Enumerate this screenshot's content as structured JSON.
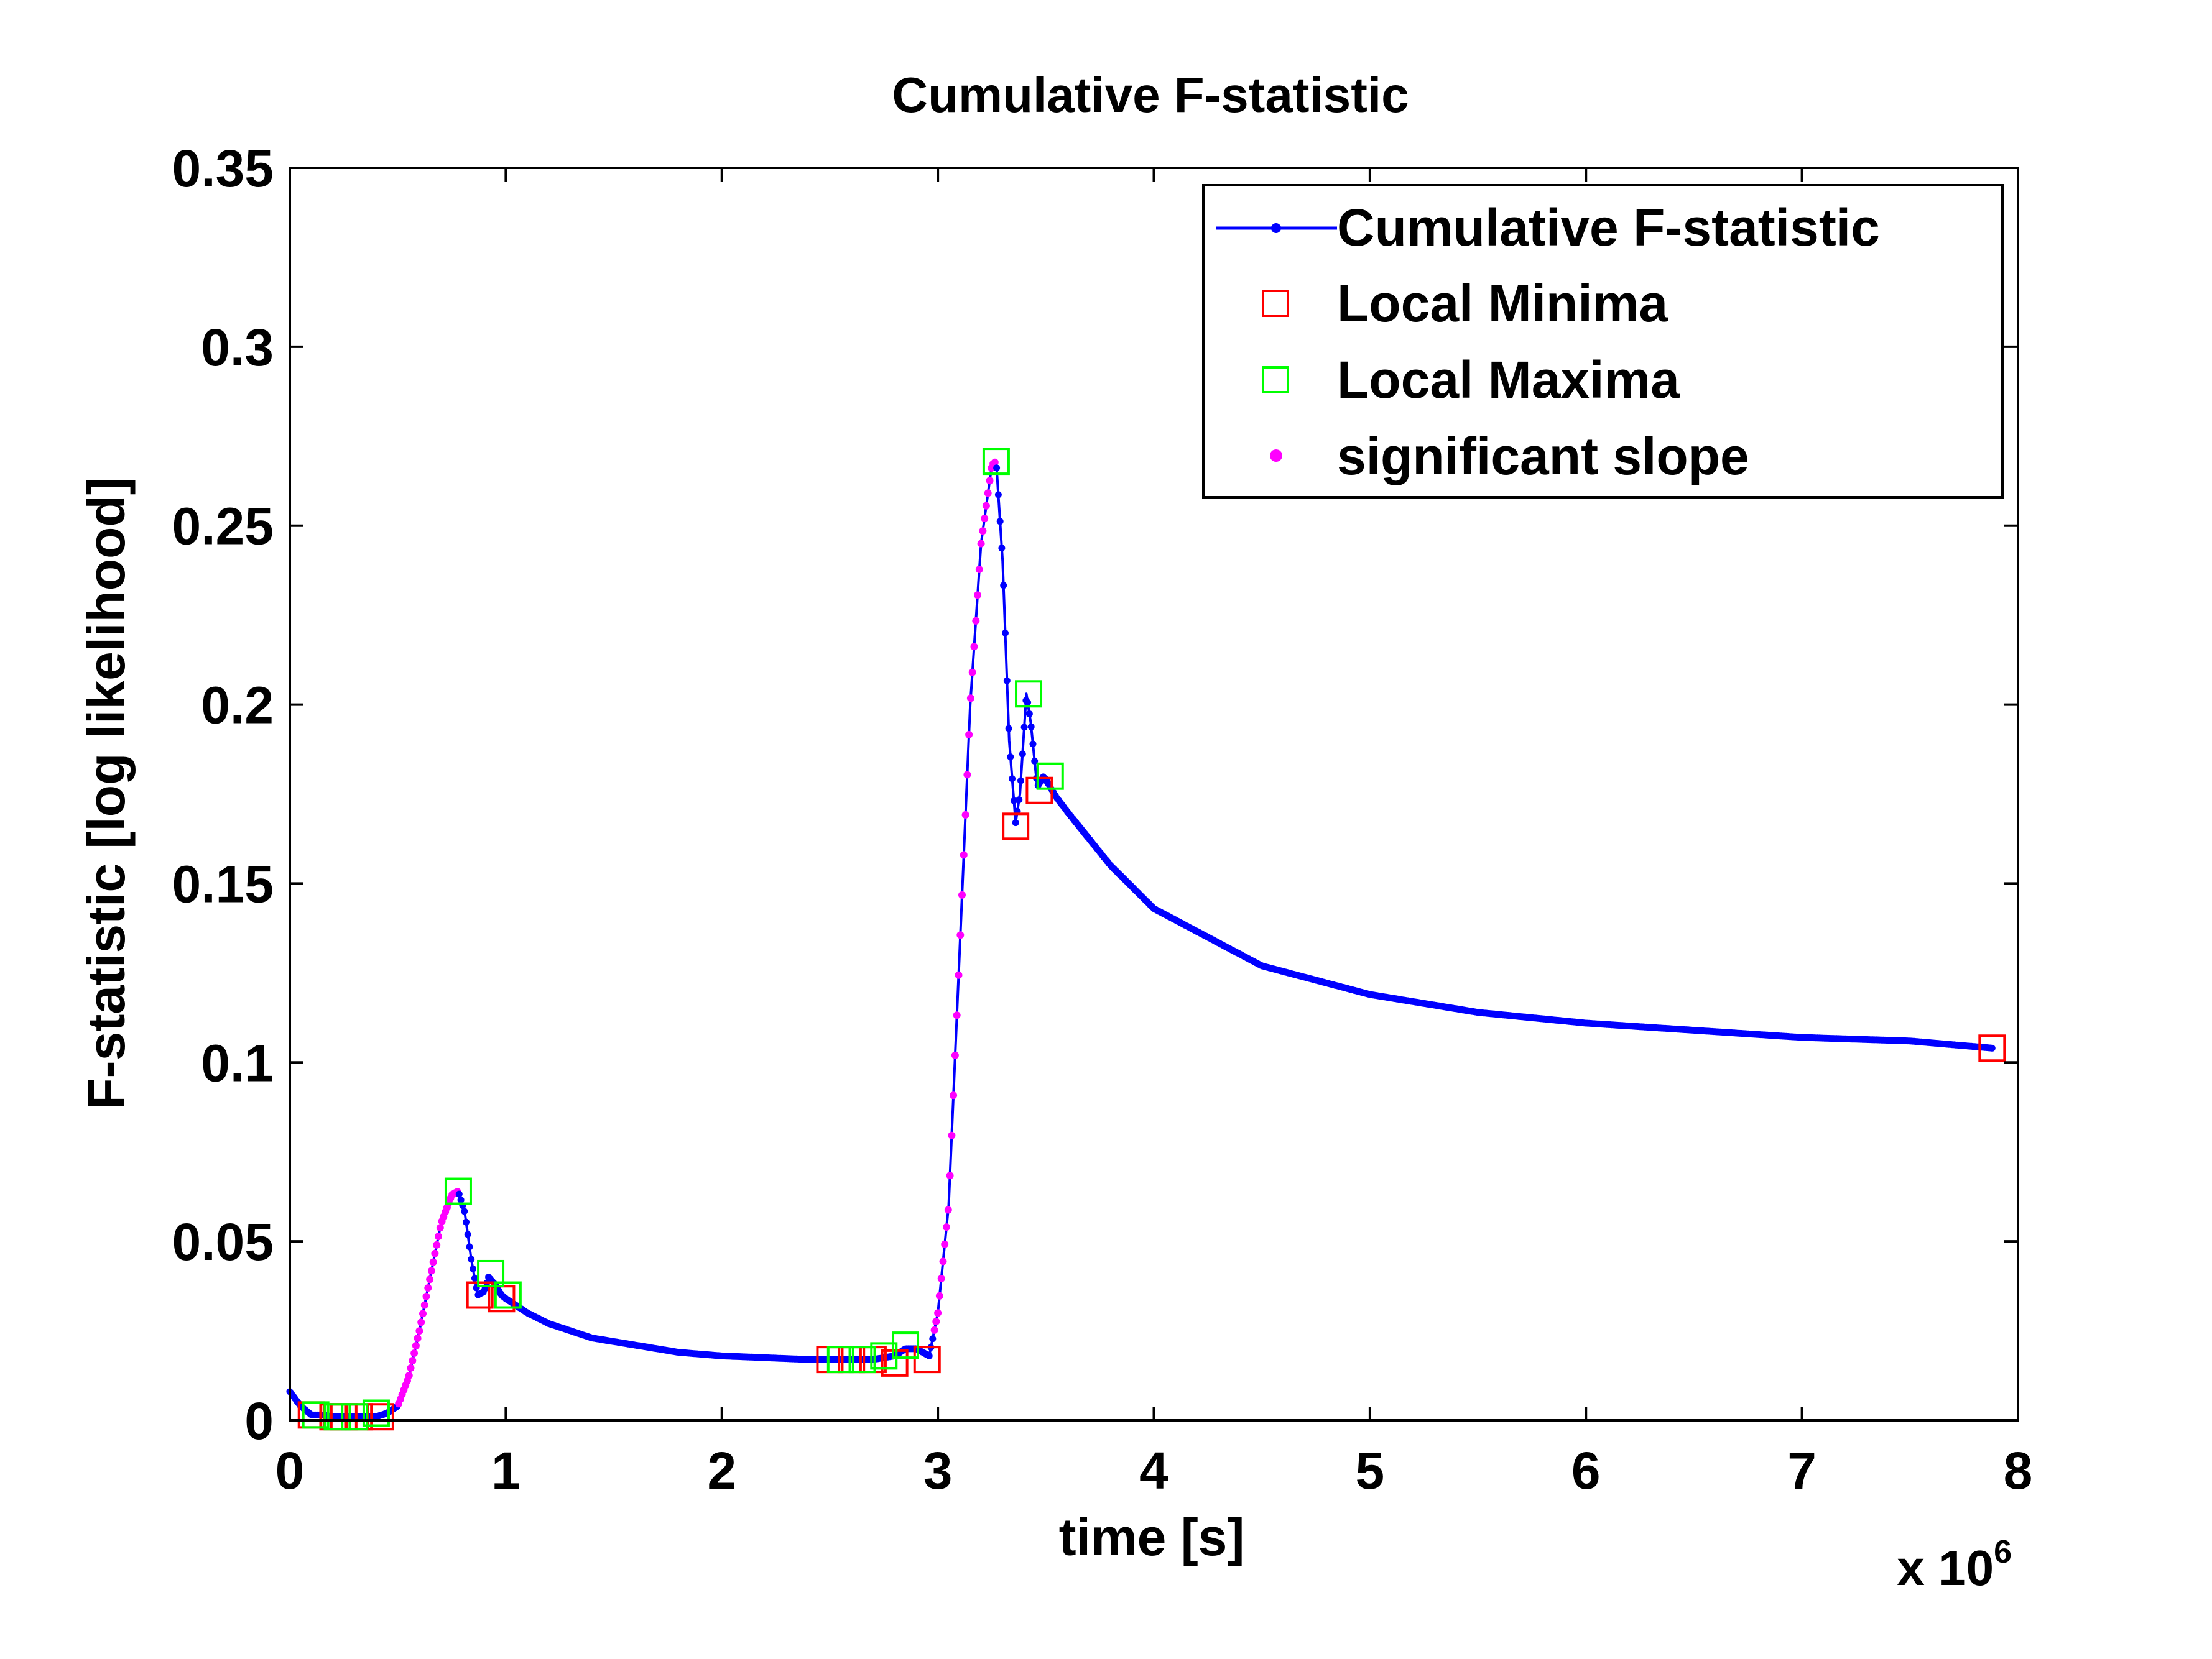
{
  "chart_data": {
    "type": "line",
    "title": "Cumulative F-statistic",
    "xlabel": "time [s]",
    "ylabel": "F-statistic [log likelihood]",
    "x_multiplier_label": "x 10",
    "x_multiplier_exponent": "6",
    "x_scale": 1000000,
    "xlim": [
      0,
      8
    ],
    "ylim": [
      0,
      0.35
    ],
    "grid": false,
    "legend_position": "top-right",
    "x_ticks": [
      0,
      1,
      2,
      3,
      4,
      5,
      6,
      7,
      8
    ],
    "x_tick_labels": [
      "0",
      "1",
      "2",
      "3",
      "4",
      "5",
      "6",
      "7",
      "8"
    ],
    "y_ticks": [
      0,
      0.05,
      0.1,
      0.15,
      0.2,
      0.25,
      0.3,
      0.35
    ],
    "y_tick_labels": [
      "0",
      "0.05",
      "0.1",
      "0.15",
      "0.2",
      "0.25",
      "0.3",
      "0.35"
    ],
    "legend": [
      {
        "label": "Cumulative F-statistic",
        "marker": "line-dot",
        "color": "#0000ff"
      },
      {
        "label": "Local Minima",
        "marker": "square",
        "color": "#ff0000"
      },
      {
        "label": "Local Maxima",
        "marker": "square",
        "color": "#00ff00"
      },
      {
        "label": "significant slope",
        "marker": "dot",
        "color": "#ff00ff"
      }
    ],
    "colors": {
      "series": "#0000ff",
      "minima": "#ff0000",
      "maxima": "#00ff00",
      "slope": "#ff00ff",
      "axis": "#000000"
    },
    "series": [
      {
        "name": "Cumulative F-statistic",
        "x": [
          0,
          0.05,
          0.1,
          0.15,
          0.2,
          0.25,
          0.3,
          0.35,
          0.4,
          0.45,
          0.5,
          0.55,
          0.6,
          0.65,
          0.7,
          0.75,
          0.78,
          0.81,
          0.84,
          0.87,
          0.9,
          0.92,
          0.95,
          0.98,
          1.0,
          1.1,
          1.2,
          1.4,
          1.6,
          1.8,
          2.0,
          2.2,
          2.4,
          2.5,
          2.6,
          2.7,
          2.75,
          2.8,
          2.85,
          2.9,
          2.93,
          2.96,
          3.0,
          3.05,
          3.1,
          3.15,
          3.2,
          3.25,
          3.27,
          3.3,
          3.33,
          3.36,
          3.38,
          3.41,
          3.43,
          3.46,
          3.49,
          3.51,
          3.55,
          3.6,
          3.8,
          4.0,
          4.5,
          5.0,
          5.5,
          6.0,
          6.5,
          7.0,
          7.5,
          7.88
        ],
        "y": [
          0.008,
          0.004,
          0.0015,
          0.0015,
          0.001,
          0.001,
          0.001,
          0.001,
          0.001,
          0.002,
          0.004,
          0.012,
          0.025,
          0.04,
          0.055,
          0.063,
          0.064,
          0.058,
          0.045,
          0.035,
          0.036,
          0.04,
          0.038,
          0.035,
          0.034,
          0.03,
          0.027,
          0.023,
          0.021,
          0.019,
          0.018,
          0.0175,
          0.017,
          0.017,
          0.017,
          0.017,
          0.0175,
          0.018,
          0.02,
          0.02,
          0.019,
          0.018,
          0.03,
          0.06,
          0.13,
          0.2,
          0.245,
          0.267,
          0.268,
          0.24,
          0.19,
          0.167,
          0.175,
          0.203,
          0.195,
          0.177,
          0.18,
          0.178,
          0.174,
          0.17,
          0.155,
          0.143,
          0.127,
          0.119,
          0.114,
          0.111,
          0.109,
          0.107,
          0.106,
          0.104
        ]
      }
    ],
    "significant_slope_ranges": [
      [
        0.5,
        0.78
      ],
      [
        2.98,
        3.27
      ]
    ],
    "local_minima": [
      {
        "x": 0.1,
        "y": 0.0015
      },
      {
        "x": 0.2,
        "y": 0.001
      },
      {
        "x": 0.25,
        "y": 0.001
      },
      {
        "x": 0.32,
        "y": 0.001
      },
      {
        "x": 0.42,
        "y": 0.001
      },
      {
        "x": 0.88,
        "y": 0.035
      },
      {
        "x": 0.98,
        "y": 0.034
      },
      {
        "x": 2.5,
        "y": 0.017
      },
      {
        "x": 2.6,
        "y": 0.017
      },
      {
        "x": 2.7,
        "y": 0.017
      },
      {
        "x": 2.8,
        "y": 0.016
      },
      {
        "x": 2.95,
        "y": 0.017
      },
      {
        "x": 3.36,
        "y": 0.166
      },
      {
        "x": 3.47,
        "y": 0.176
      },
      {
        "x": 7.88,
        "y": 0.104
      }
    ],
    "local_maxima": [
      {
        "x": 0.12,
        "y": 0.0015
      },
      {
        "x": 0.22,
        "y": 0.001
      },
      {
        "x": 0.3,
        "y": 0.001
      },
      {
        "x": 0.4,
        "y": 0.002
      },
      {
        "x": 0.78,
        "y": 0.064
      },
      {
        "x": 0.93,
        "y": 0.041
      },
      {
        "x": 1.01,
        "y": 0.035
      },
      {
        "x": 2.55,
        "y": 0.017
      },
      {
        "x": 2.65,
        "y": 0.017
      },
      {
        "x": 2.75,
        "y": 0.018
      },
      {
        "x": 2.85,
        "y": 0.021
      },
      {
        "x": 3.27,
        "y": 0.268
      },
      {
        "x": 3.42,
        "y": 0.203
      },
      {
        "x": 3.52,
        "y": 0.18
      }
    ]
  }
}
